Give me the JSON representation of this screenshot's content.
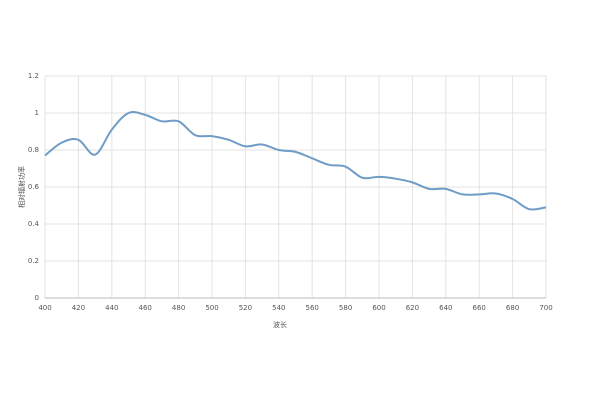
{
  "chart_data": {
    "type": "line",
    "x_label": "波长",
    "y_label": "相对辐射功率",
    "x": [
      400,
      410,
      420,
      430,
      440,
      450,
      460,
      470,
      480,
      490,
      500,
      510,
      520,
      530,
      540,
      550,
      560,
      570,
      580,
      590,
      600,
      610,
      620,
      630,
      640,
      650,
      660,
      670,
      680,
      690,
      700
    ],
    "series": [
      {
        "color": "#6f9cc6",
        "values": [
          0.77,
          0.84,
          0.855,
          0.775,
          0.91,
          1.0,
          0.99,
          0.955,
          0.955,
          0.88,
          0.875,
          0.855,
          0.82,
          0.83,
          0.8,
          0.79,
          0.755,
          0.72,
          0.71,
          0.65,
          0.655,
          0.645,
          0.625,
          0.59,
          0.59,
          0.56,
          0.56,
          0.565,
          0.535,
          0.48,
          0.49
        ]
      }
    ],
    "xlim": [
      400,
      700
    ],
    "ylim": [
      0,
      1.2
    ],
    "xticks": [
      400,
      420,
      440,
      460,
      480,
      500,
      520,
      540,
      560,
      580,
      600,
      620,
      640,
      660,
      680,
      700
    ],
    "yticks": [
      0,
      0.2,
      0.4,
      0.6,
      0.8,
      1,
      1.2
    ],
    "grid": true
  }
}
